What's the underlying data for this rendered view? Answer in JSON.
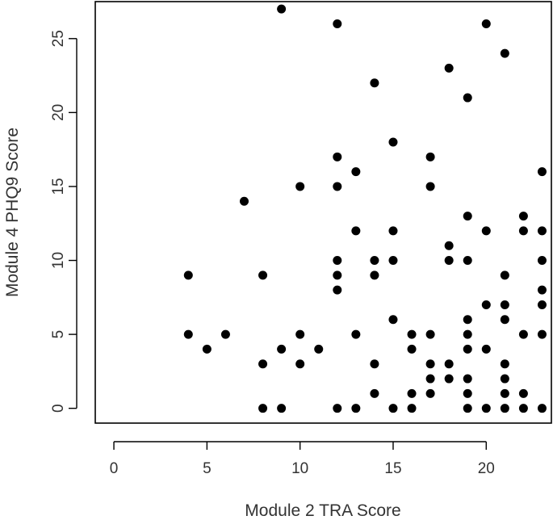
{
  "chart_data": {
    "type": "scatter",
    "title": "",
    "xlabel": "Module 2 TRA Score",
    "ylabel": "Module 4 PHQ9 Score",
    "xlim": [
      -1,
      23.5
    ],
    "ylim": [
      -1,
      27.5
    ],
    "xticks": [
      0,
      5,
      10,
      15,
      20
    ],
    "yticks": [
      0,
      5,
      10,
      15,
      20,
      25
    ],
    "grid": false,
    "legend": "none",
    "point_color": "#000000",
    "series": [
      {
        "points": [
          [
            4,
            9
          ],
          [
            4,
            5
          ],
          [
            5,
            4
          ],
          [
            6,
            5
          ],
          [
            7,
            14
          ],
          [
            8,
            9
          ],
          [
            8,
            3
          ],
          [
            8,
            0
          ],
          [
            9,
            27
          ],
          [
            9,
            4
          ],
          [
            9,
            0
          ],
          [
            10,
            15
          ],
          [
            10,
            5
          ],
          [
            10,
            3
          ],
          [
            11,
            4
          ],
          [
            12,
            26
          ],
          [
            12,
            17
          ],
          [
            12,
            15
          ],
          [
            12,
            10
          ],
          [
            12,
            9
          ],
          [
            12,
            8
          ],
          [
            12,
            0
          ],
          [
            13,
            16
          ],
          [
            13,
            12
          ],
          [
            13,
            5
          ],
          [
            13,
            0
          ],
          [
            14,
            22
          ],
          [
            14,
            10
          ],
          [
            14,
            9
          ],
          [
            14,
            3
          ],
          [
            14,
            1
          ],
          [
            15,
            18
          ],
          [
            15,
            12
          ],
          [
            15,
            10
          ],
          [
            15,
            6
          ],
          [
            15,
            0
          ],
          [
            16,
            5
          ],
          [
            16,
            4
          ],
          [
            16,
            1
          ],
          [
            16,
            0
          ],
          [
            17,
            17
          ],
          [
            17,
            15
          ],
          [
            17,
            5
          ],
          [
            17,
            3
          ],
          [
            17,
            2
          ],
          [
            17,
            1
          ],
          [
            18,
            23
          ],
          [
            18,
            11
          ],
          [
            18,
            10
          ],
          [
            18,
            3
          ],
          [
            18,
            2
          ],
          [
            19,
            21
          ],
          [
            19,
            13
          ],
          [
            19,
            10
          ],
          [
            19,
            6
          ],
          [
            19,
            5
          ],
          [
            19,
            4
          ],
          [
            19,
            2
          ],
          [
            19,
            1
          ],
          [
            19,
            0
          ],
          [
            20,
            26
          ],
          [
            20,
            12
          ],
          [
            20,
            7
          ],
          [
            20,
            4
          ],
          [
            20,
            0
          ],
          [
            21,
            24
          ],
          [
            21,
            9
          ],
          [
            21,
            7
          ],
          [
            21,
            6
          ],
          [
            21,
            3
          ],
          [
            21,
            2
          ],
          [
            21,
            1
          ],
          [
            21,
            0
          ],
          [
            22,
            13
          ],
          [
            22,
            12
          ],
          [
            22,
            5
          ],
          [
            22,
            1
          ],
          [
            22,
            0
          ],
          [
            23,
            16
          ],
          [
            23,
            12
          ],
          [
            23,
            10
          ],
          [
            23,
            8
          ],
          [
            23,
            7
          ],
          [
            23,
            5
          ],
          [
            23,
            0
          ]
        ]
      }
    ]
  }
}
